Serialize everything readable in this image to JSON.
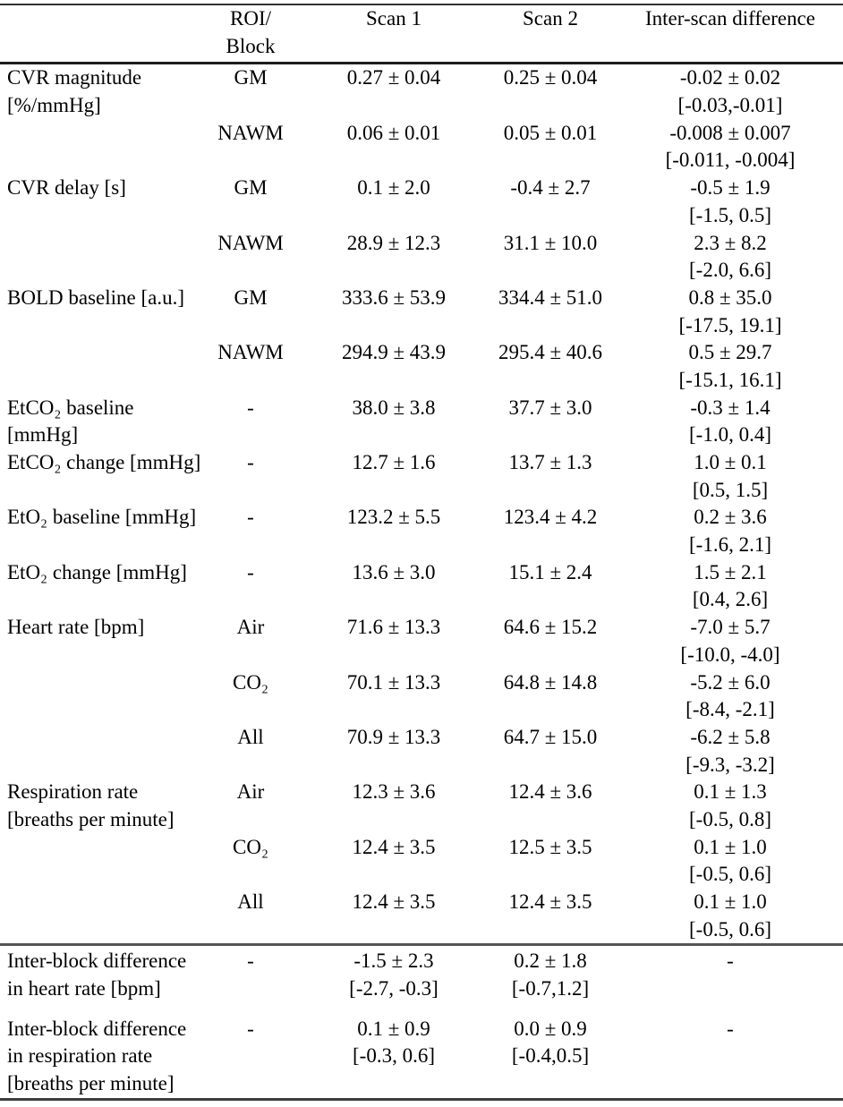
{
  "table": {
    "header": {
      "col_roi_line1": "ROI/",
      "col_roi_line2": "Block",
      "col_scan1": "Scan 1",
      "col_scan2": "Scan 2",
      "col_diff": "Inter-scan difference"
    },
    "groups": [
      {
        "label_lines": [
          "CVR magnitude",
          "[%/mmHg]"
        ],
        "entries": [
          {
            "roi": "GM",
            "scan1": "0.27 ± 0.04",
            "scan2": "0.25 ± 0.04",
            "diff": "-0.02 ± 0.02",
            "diff_ci": "[-0.03,-0.01]"
          },
          {
            "roi": "NAWM",
            "scan1": "0.06 ± 0.01",
            "scan2": "0.05 ± 0.01",
            "diff": "-0.008 ± 0.007",
            "diff_ci": "[-0.011, -0.004]"
          }
        ]
      },
      {
        "label_lines": [
          "CVR delay [s]"
        ],
        "entries": [
          {
            "roi": "GM",
            "scan1": "0.1 ± 2.0",
            "scan2": "-0.4 ± 2.7",
            "diff": "-0.5 ± 1.9",
            "diff_ci": "[-1.5, 0.5]"
          },
          {
            "roi": "NAWM",
            "scan1": "28.9 ± 12.3",
            "scan2": "31.1 ± 10.0",
            "diff": "2.3 ± 8.2",
            "diff_ci": "[-2.0, 6.6]"
          }
        ]
      },
      {
        "label_lines": [
          "BOLD baseline [a.u.]"
        ],
        "entries": [
          {
            "roi": "GM",
            "scan1": "333.6 ± 53.9",
            "scan2": "334.4 ± 51.0",
            "diff": "0.8 ± 35.0",
            "diff_ci": "[-17.5, 19.1]"
          },
          {
            "roi": "NAWM",
            "scan1": "294.9 ± 43.9",
            "scan2": "295.4 ± 40.6",
            "diff": "0.5 ± 29.7",
            "diff_ci": "[-15.1, 16.1]"
          }
        ]
      },
      {
        "label_lines": [
          "EtCO₂ baseline",
          "[mmHg]"
        ],
        "entries": [
          {
            "roi": "-",
            "scan1": "38.0 ± 3.8",
            "scan2": "37.7 ± 3.0",
            "diff": "-0.3 ± 1.4",
            "diff_ci": "[-1.0, 0.4]"
          }
        ]
      },
      {
        "label_lines": [
          "EtCO₂ change [mmHg]"
        ],
        "entries": [
          {
            "roi": "-",
            "scan1": "12.7 ± 1.6",
            "scan2": "13.7 ± 1.3",
            "diff": "1.0 ± 0.1",
            "diff_ci": "[0.5, 1.5]"
          }
        ]
      },
      {
        "label_lines": [
          "EtO₂ baseline [mmHg]"
        ],
        "entries": [
          {
            "roi": "-",
            "scan1": "123.2 ± 5.5",
            "scan2": "123.4 ± 4.2",
            "diff": "0.2 ± 3.6",
            "diff_ci": "[-1.6, 2.1]"
          }
        ]
      },
      {
        "label_lines": [
          "EtO₂ change [mmHg]"
        ],
        "entries": [
          {
            "roi": "-",
            "scan1": "13.6 ± 3.0",
            "scan2": "15.1 ± 2.4",
            "diff": "1.5 ± 2.1",
            "diff_ci": "[0.4, 2.6]"
          }
        ]
      },
      {
        "label_lines": [
          "Heart rate [bpm]"
        ],
        "entries": [
          {
            "roi": "Air",
            "scan1": "71.6 ± 13.3",
            "scan2": "64.6 ± 15.2",
            "diff": "-7.0 ± 5.7",
            "diff_ci": "[-10.0, -4.0]"
          },
          {
            "roi": "CO₂",
            "scan1": "70.1 ± 13.3",
            "scan2": "64.8 ± 14.8",
            "diff": "-5.2 ± 6.0",
            "diff_ci": "[-8.4, -2.1]"
          },
          {
            "roi": "All",
            "scan1": "70.9 ± 13.3",
            "scan2": "64.7 ± 15.0",
            "diff": "-6.2 ± 5.8",
            "diff_ci": "[-9.3, -3.2]"
          }
        ]
      },
      {
        "label_lines": [
          "Respiration rate",
          "[breaths per minute]"
        ],
        "entries": [
          {
            "roi": "Air",
            "scan1": "12.3 ± 3.6",
            "scan2": "12.4 ± 3.6",
            "diff": "0.1 ± 1.3",
            "diff_ci": "[-0.5, 0.8]"
          },
          {
            "roi": "CO₂",
            "scan1": "12.4 ± 3.5",
            "scan2": "12.5 ± 3.5",
            "diff": "0.1 ± 1.0",
            "diff_ci": "[-0.5, 0.6]"
          },
          {
            "roi": "All",
            "scan1": "12.4 ± 3.5",
            "scan2": "12.4 ± 3.5",
            "diff": "0.1 ± 1.0",
            "diff_ci": "[-0.5, 0.6]"
          }
        ]
      }
    ],
    "footer_groups": [
      {
        "label_lines": [
          "Inter-block difference",
          "in heart rate [bpm]"
        ],
        "roi": "-",
        "scan1": "-1.5 ± 2.3",
        "scan1_ci": "[-2.7, -0.3]",
        "scan2": "0.2 ± 1.8",
        "scan2_ci": "[-0.7,1.2]",
        "diff": "-"
      },
      {
        "label_lines": [
          "Inter-block difference",
          "in respiration rate",
          "[breaths per minute]"
        ],
        "roi": "-",
        "scan1": "0.1 ± 0.9",
        "scan1_ci": "[-0.3, 0.6]",
        "scan2": "0.0 ± 0.9",
        "scan2_ci": "[-0.4,0.5]",
        "diff": "-"
      }
    ]
  }
}
